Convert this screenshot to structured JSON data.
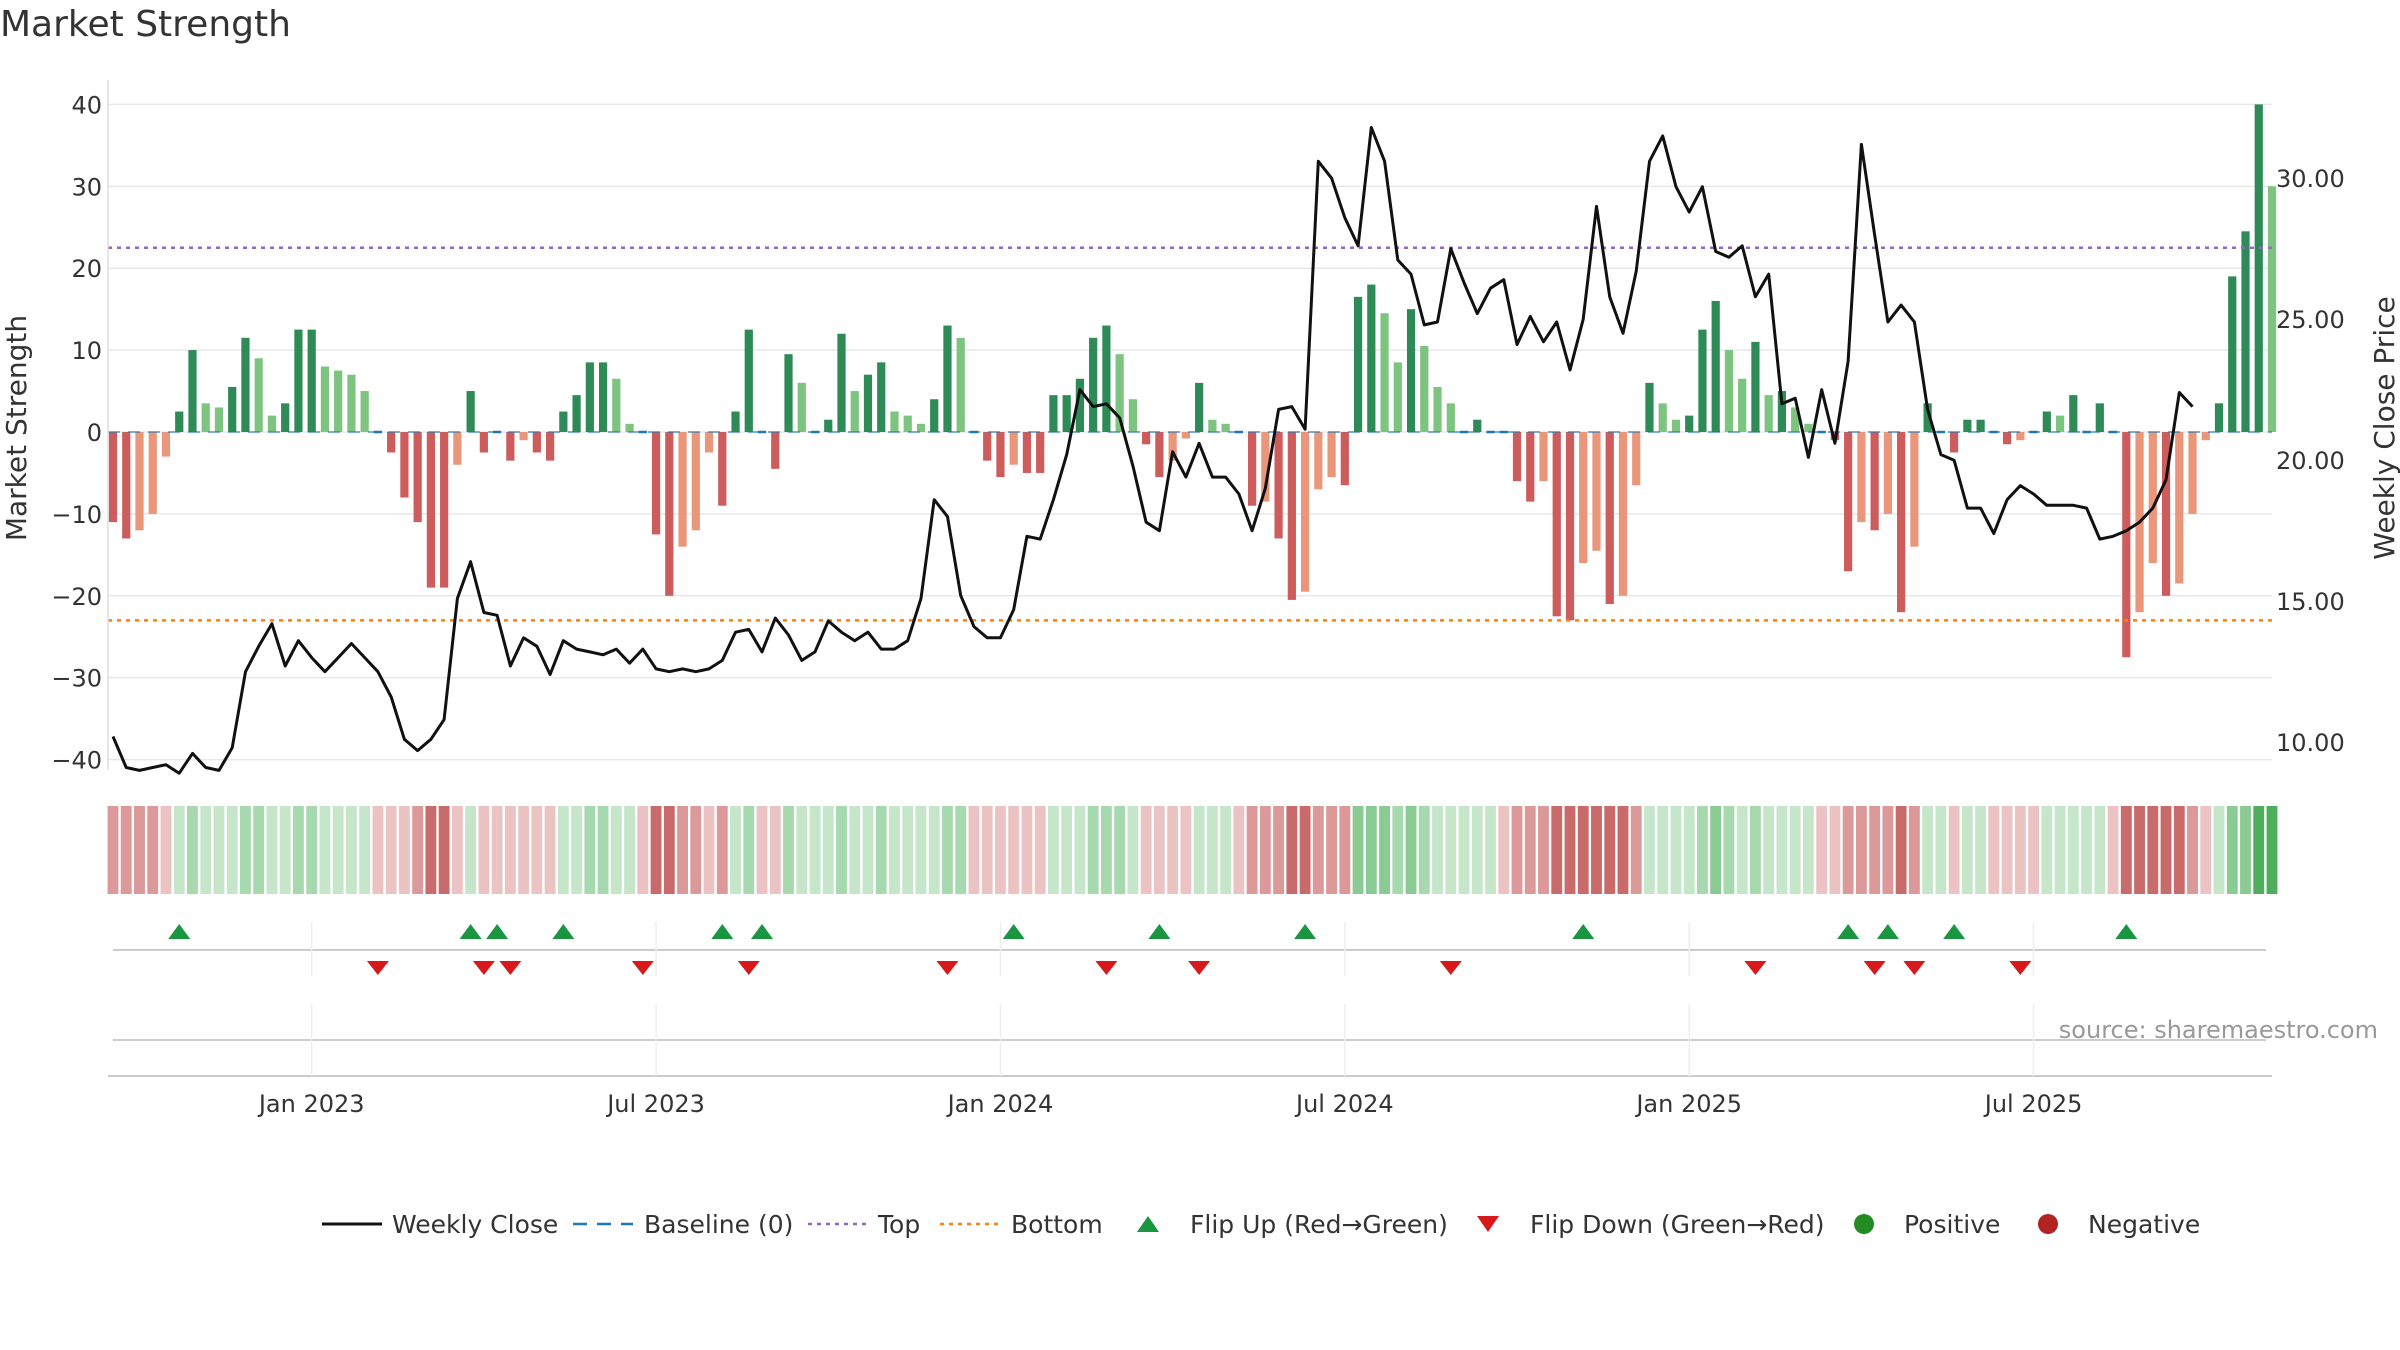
{
  "chart_data": {
    "type": "bar",
    "title": "Market Strength",
    "ylabel_left": "Market Strength",
    "ylabel_right": "Weekly Close Price",
    "ylim_left": [
      -42,
      42
    ],
    "yticks_left": [
      {
        "value": 40,
        "label": "40"
      },
      {
        "value": 30,
        "label": "30"
      },
      {
        "value": 20,
        "label": "20"
      },
      {
        "value": 10,
        "label": "10"
      },
      {
        "value": 0,
        "label": "0"
      },
      {
        "value": -10,
        "label": "−10"
      },
      {
        "value": -20,
        "label": "−20"
      },
      {
        "value": -30,
        "label": "−30"
      },
      {
        "value": -40,
        "label": "−40"
      }
    ],
    "ylim_right": [
      8.8,
      33.2
    ],
    "yticks_right": [
      {
        "value": 30,
        "label": "30.00"
      },
      {
        "value": 25,
        "label": "25.00"
      },
      {
        "value": 20,
        "label": "20.00"
      },
      {
        "value": 15,
        "label": "15.00"
      },
      {
        "value": 10,
        "label": "10.00"
      }
    ],
    "x_ticks": [
      {
        "index": 15,
        "label": "Jan 2023"
      },
      {
        "index": 41,
        "label": "Jul 2023"
      },
      {
        "index": 67,
        "label": "Jan 2024"
      },
      {
        "index": 93,
        "label": "Jul 2024"
      },
      {
        "index": 119,
        "label": "Jan 2025"
      },
      {
        "index": 145,
        "label": "Jul 2025"
      }
    ],
    "top_level": 22.5,
    "bottom_level": -23,
    "baseline": 0,
    "strength": [
      -11,
      -13,
      -12,
      -10,
      -3,
      2.5,
      10,
      3.5,
      3,
      5.5,
      11.5,
      9,
      2,
      3.5,
      12.5,
      12.5,
      8,
      7.5,
      7,
      5,
      -0.3,
      -2.5,
      -8,
      -11,
      -19,
      -19,
      -4,
      5,
      -2.5,
      -0.3,
      -3.5,
      -1,
      -2.5,
      -3.5,
      2.5,
      4.5,
      8.5,
      8.5,
      6.5,
      1,
      -0.3,
      -12.5,
      -20,
      -14,
      -12,
      -2.5,
      -9,
      2.5,
      12.5,
      -0.3,
      -4.5,
      9.5,
      6,
      0.5,
      1.5,
      12,
      5,
      7,
      8.5,
      2.5,
      2,
      1,
      4,
      13,
      11.5,
      -0.3,
      -3.5,
      -5.5,
      -4,
      -5,
      -5,
      4.5,
      4.5,
      6.5,
      11.5,
      13,
      9.5,
      4,
      -1.5,
      -5.5,
      -3.5,
      -0.8,
      6,
      1.5,
      1,
      -0.3,
      -9,
      -8.5,
      -13,
      -20.5,
      -19.5,
      -7,
      -5.5,
      -6.5,
      16.5,
      18,
      14.5,
      8.5,
      15,
      10.5,
      5.5,
      3.5,
      0.3,
      1.5,
      0.5,
      -0.3,
      -6,
      -8.5,
      -6,
      -22.5,
      -23,
      -16,
      -14.5,
      -21,
      -20,
      -6.5,
      6,
      3.5,
      1.5,
      2,
      12.5,
      16,
      10,
      6.5,
      11,
      4.5,
      5,
      3,
      1,
      -0.3,
      -1,
      -17,
      -11,
      -12,
      -10,
      -22,
      -14,
      3.5,
      0.5,
      -2.5,
      1.5,
      1.5,
      -0.3,
      -1.5,
      -1,
      -0.3,
      2.5,
      2,
      4.5,
      0.5,
      3.5,
      -0.3,
      -27.5,
      -22,
      -16,
      -20,
      -18.5,
      -10,
      -1,
      3.5,
      19,
      24.5,
      40,
      30
    ],
    "close": [
      10.2,
      9.1,
      9,
      9.1,
      9.2,
      8.9,
      9.6,
      9.1,
      9,
      9.8,
      12.5,
      13.4,
      14.2,
      12.7,
      13.6,
      13,
      12.5,
      13,
      13.5,
      13,
      12.5,
      11.6,
      10.1,
      9.7,
      10.1,
      10.8,
      15.1,
      16.4,
      14.6,
      14.5,
      12.7,
      13.7,
      13.4,
      12.4,
      13.6,
      13.3,
      13.2,
      13.1,
      13.3,
      12.8,
      13.3,
      12.6,
      12.5,
      12.6,
      12.5,
      12.6,
      12.9,
      13.9,
      14,
      13.2,
      14.4,
      13.8,
      12.9,
      13.2,
      14.3,
      13.9,
      13.6,
      13.9,
      13.3,
      13.3,
      13.6,
      15.1,
      18.6,
      18,
      15.2,
      14.1,
      13.7,
      13.7,
      14.7,
      17.3,
      17.2,
      18.6,
      20.2,
      22.5,
      21.9,
      22,
      21.5,
      19.8,
      17.8,
      17.5,
      20.3,
      19.4,
      20.6,
      19.4,
      19.4,
      18.8,
      17.5,
      19,
      21.8,
      21.9,
      21.1,
      30.6,
      30,
      28.6,
      27.6,
      31.8,
      30.6,
      27.1,
      26.6,
      24.8,
      24.9,
      27.5,
      26.3,
      25.2,
      26.1,
      26.4,
      24.1,
      25.1,
      24.2,
      24.9,
      23.2,
      25,
      29,
      25.8,
      24.5,
      26.7,
      30.6,
      31.5,
      29.7,
      28.8,
      29.7,
      27.4,
      27.2,
      27.6,
      25.8,
      26.6,
      22,
      22.2,
      20.1,
      22.5,
      20.6,
      23.5,
      31.2,
      28,
      24.9,
      25.5,
      24.9,
      21.8,
      20.2,
      20,
      18.3,
      18.3,
      17.4,
      18.6,
      19.1,
      18.8,
      18.4,
      18.4,
      18.4,
      18.3,
      17.2,
      17.3,
      17.5,
      17.8,
      18.3,
      19.3,
      22.4,
      21.9
    ],
    "strip_levels": [
      -2,
      -2,
      -2,
      -2,
      -1,
      1,
      2,
      1,
      1,
      1,
      2,
      2,
      1,
      1,
      2,
      2,
      1,
      1,
      1,
      1,
      -1,
      -1,
      -1,
      -2,
      -3,
      -3,
      -1,
      1,
      -1,
      -1,
      -1,
      -1,
      -1,
      -1,
      1,
      1,
      2,
      2,
      1,
      1,
      -1,
      -3,
      -3,
      -2,
      -2,
      -1,
      -2,
      1,
      2,
      -1,
      -1,
      2,
      1,
      1,
      1,
      2,
      1,
      1,
      2,
      1,
      1,
      1,
      1,
      2,
      2,
      -1,
      -1,
      -1,
      -1,
      -1,
      -1,
      1,
      1,
      1,
      2,
      2,
      2,
      1,
      -1,
      -1,
      -1,
      -1,
      1,
      1,
      1,
      -1,
      -2,
      -2,
      -2,
      -3,
      -3,
      -2,
      -2,
      -2,
      3,
      3,
      3,
      2,
      3,
      2,
      1,
      1,
      1,
      1,
      1,
      -1,
      -2,
      -2,
      -2,
      -3,
      -3,
      -3,
      -3,
      -3,
      -3,
      -2,
      1,
      1,
      1,
      1,
      2,
      3,
      2,
      1,
      2,
      1,
      1,
      1,
      1,
      -1,
      -1,
      -2,
      -2,
      -2,
      -2,
      -3,
      -2,
      1,
      1,
      -1,
      1,
      1,
      -1,
      -1,
      -1,
      -1,
      1,
      1,
      1,
      1,
      1,
      -1,
      -3,
      -3,
      -3,
      -3,
      -3,
      -2,
      -1,
      1,
      3,
      3,
      4,
      4
    ],
    "flip_up": [
      5,
      27,
      29,
      34,
      46,
      49,
      68,
      79,
      90,
      111,
      131,
      134,
      139,
      152
    ],
    "flip_down": [
      20,
      28,
      30,
      40,
      48,
      63,
      75,
      82,
      101,
      124,
      133,
      136,
      144
    ],
    "source": "source: sharemaestro.com",
    "legend": [
      {
        "key": "close",
        "label": "Weekly Close"
      },
      {
        "key": "baseline",
        "label": "Baseline (0)"
      },
      {
        "key": "top",
        "label": "Top"
      },
      {
        "key": "bottom",
        "label": "Bottom"
      },
      {
        "key": "flip_up",
        "label": "Flip Up (Red→Green)"
      },
      {
        "key": "flip_down",
        "label": "Flip Down (Green→Red)"
      },
      {
        "key": "positive",
        "label": "Positive"
      },
      {
        "key": "negative",
        "label": "Negative"
      }
    ],
    "colors": {
      "pos_strong": "#2e8b57",
      "pos_weak": "#7cc47f",
      "neg_strong": "#cd5c5c",
      "neg_weak": "#e9967a",
      "close": "#111111",
      "baseline": "#1f77b4",
      "top": "#9467bd",
      "bottom": "#ff7f0e",
      "flip_up": "#1a9641",
      "flip_down": "#d7191c",
      "positive": "#228b22",
      "negative": "#b22222"
    }
  }
}
